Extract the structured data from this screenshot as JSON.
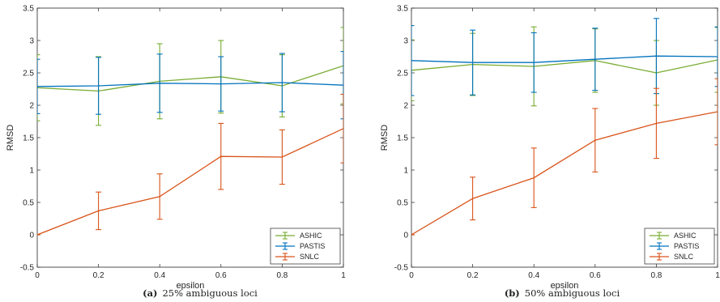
{
  "chart_data": [
    {
      "type": "line",
      "caption_tag": "(a)",
      "caption_text": "25% ambiguous loci",
      "xlabel": "epsilon",
      "ylabel": "RMSD",
      "xlim": [
        0,
        1
      ],
      "ylim": [
        -0.5,
        3.5
      ],
      "xticks": [
        "0",
        "0.2",
        "0.4",
        "0.6",
        "0.8",
        "1"
      ],
      "yticks": [
        "-0.5",
        "0",
        "0.5",
        "1",
        "1.5",
        "2",
        "2.5",
        "3",
        "3.5"
      ],
      "legend_position": "bottom-right",
      "x": [
        0,
        0.2,
        0.4,
        0.6,
        0.8,
        1
      ],
      "series": [
        {
          "name": "ASHIC",
          "color": "#77AC30",
          "values": [
            2.27,
            2.22,
            2.37,
            2.44,
            2.3,
            2.61
          ],
          "error": [
            0.51,
            0.53,
            0.58,
            0.56,
            0.48,
            0.59
          ]
        },
        {
          "name": "PASTIS",
          "color": "#0072BD",
          "values": [
            2.29,
            2.3,
            2.34,
            2.33,
            2.35,
            2.31
          ],
          "error": [
            0.42,
            0.44,
            0.45,
            0.42,
            0.45,
            0.52
          ]
        },
        {
          "name": "SNLC",
          "color": "#D95319",
          "values": [
            0.0,
            0.37,
            0.59,
            1.21,
            1.2,
            1.64
          ],
          "error": [
            0.0,
            0.29,
            0.35,
            0.51,
            0.42,
            0.53
          ]
        }
      ]
    },
    {
      "type": "line",
      "caption_tag": "(b)",
      "caption_text": "50% ambiguous loci",
      "xlabel": "epsilon",
      "ylabel": "RMSD",
      "xlim": [
        0,
        1
      ],
      "ylim": [
        -0.5,
        3.5
      ],
      "xticks": [
        "0",
        "0.2",
        "0.4",
        "0.6",
        "0.8",
        "1"
      ],
      "yticks": [
        "-0.5",
        "0",
        "0.5",
        "1",
        "1.5",
        "2",
        "2.5",
        "3",
        "3.5"
      ],
      "legend_position": "bottom-right",
      "x": [
        0,
        0.2,
        0.4,
        0.6,
        0.8,
        1
      ],
      "series": [
        {
          "name": "ASHIC",
          "color": "#77AC30",
          "values": [
            2.54,
            2.63,
            2.6,
            2.69,
            2.5,
            2.7
          ],
          "error": [
            0.47,
            0.48,
            0.61,
            0.49,
            0.5,
            0.5
          ]
        },
        {
          "name": "PASTIS",
          "color": "#0072BD",
          "values": [
            2.69,
            2.66,
            2.66,
            2.71,
            2.76,
            2.75
          ],
          "error": [
            0.54,
            0.5,
            0.46,
            0.48,
            0.58,
            0.46
          ]
        },
        {
          "name": "SNLC",
          "color": "#D95319",
          "values": [
            0.0,
            0.56,
            0.88,
            1.46,
            1.72,
            1.9
          ],
          "error": [
            0.0,
            0.33,
            0.46,
            0.49,
            0.54,
            0.51
          ]
        }
      ]
    }
  ]
}
